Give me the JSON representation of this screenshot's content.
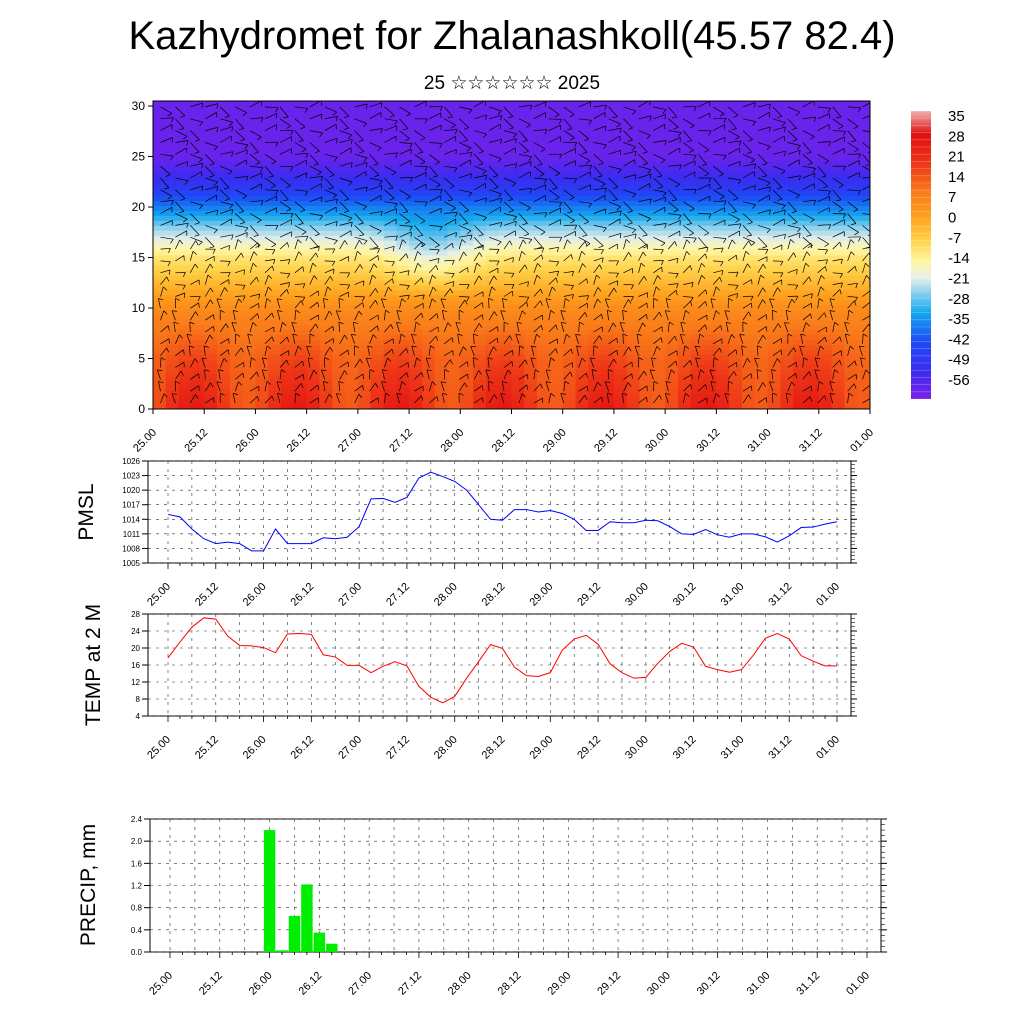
{
  "title": "Kazhydromet for Zhalanashkoll(45.57 82.4)",
  "subtitle": "25 ☆☆☆☆☆☆ 2025",
  "time_labels": [
    "25.00",
    "25.12",
    "26.00",
    "26.12",
    "27.00",
    "27.12",
    "28.00",
    "28.12",
    "29.00",
    "29.12",
    "30.00",
    "30.12",
    "31.00",
    "31.12",
    "01.00"
  ],
  "chart_data": [
    {
      "type": "heatmap",
      "name": "vertical-cross-section",
      "x_ticks": [
        "25.00",
        "25.12",
        "26.00",
        "26.12",
        "27.00",
        "27.12",
        "28.00",
        "28.12",
        "29.00",
        "29.12",
        "30.00",
        "30.12",
        "31.00",
        "31.12",
        "01.00"
      ],
      "y_ticks": [
        0,
        5,
        10,
        15,
        20,
        25,
        30
      ],
      "ylim": [
        0,
        30.5
      ],
      "colorbar_labels": [
        "35",
        "28",
        "21",
        "14",
        "7",
        "0",
        "-7",
        "-14",
        "-21",
        "-28",
        "-35",
        "-42",
        "-49",
        "-56"
      ],
      "color_range": [
        -63,
        42
      ],
      "temperature_profile": [
        {
          "y": 0,
          "value": 26
        },
        {
          "y": 5,
          "value": 20
        },
        {
          "y": 10,
          "value": 10
        },
        {
          "y": 15,
          "value": -8
        },
        {
          "y": 18,
          "value": -24
        },
        {
          "y": 20,
          "value": -36
        },
        {
          "y": 22,
          "value": -48
        },
        {
          "y": 25,
          "value": -60
        },
        {
          "y": 30,
          "value": -60
        }
      ],
      "wind_barbs": true
    },
    {
      "type": "line",
      "name": "pmsl",
      "ylabel": "PMSL",
      "ylim": [
        1005,
        1026
      ],
      "y_ticks": [
        1005,
        1008,
        1011,
        1014,
        1017,
        1020,
        1023,
        1026
      ],
      "color": "#0000ff",
      "x_ticks": [
        "25.00",
        "25.12",
        "26.00",
        "26.12",
        "27.00",
        "27.12",
        "28.00",
        "28.12",
        "29.00",
        "29.12",
        "30.00",
        "30.12",
        "31.00",
        "31.12",
        "01.00"
      ],
      "x_step_hours": 3,
      "values": [
        1015,
        1014.5,
        1012,
        1010,
        1009,
        1009.3,
        1009,
        1007.5,
        1007.5,
        1012,
        1009,
        1009,
        1009,
        1010.2,
        1010,
        1010.3,
        1012.5,
        1018.2,
        1018.3,
        1017.5,
        1018.5,
        1022.5,
        1023.7,
        1022.8,
        1021.8,
        1020,
        1017,
        1014,
        1013.8,
        1016,
        1016,
        1015.5,
        1015.8,
        1015.2,
        1014,
        1011.7,
        1011.7,
        1013.5,
        1013.3,
        1013.3,
        1013.8,
        1013.7,
        1012.5,
        1011,
        1010.9,
        1011.9,
        1010.8,
        1010.3,
        1011,
        1011,
        1010.4,
        1009.3,
        1010.6,
        1012.3,
        1012.4,
        1013,
        1013.5
      ]
    },
    {
      "type": "line",
      "name": "temp-2m",
      "ylabel": "TEMP at 2 M",
      "ylim": [
        4,
        28
      ],
      "y_ticks": [
        4,
        8,
        12,
        16,
        20,
        24,
        28
      ],
      "color": "#ff0000",
      "x_ticks": [
        "25.00",
        "25.12",
        "26.00",
        "26.12",
        "27.00",
        "27.12",
        "28.00",
        "28.12",
        "29.00",
        "29.12",
        "30.00",
        "30.12",
        "31.00",
        "31.12",
        "01.00"
      ],
      "x_step_hours": 3,
      "values": [
        17.7,
        21.4,
        24.9,
        27.1,
        26.8,
        22.8,
        20.6,
        20.5,
        20.1,
        18.9,
        23.3,
        23.4,
        23.2,
        18.4,
        17.9,
        15.9,
        15.9,
        14.2,
        15.7,
        16.8,
        15.8,
        11,
        8.4,
        7.1,
        8.6,
        12.9,
        16.8,
        20.8,
        19.9,
        15.5,
        13.5,
        13.3,
        14.2,
        19.5,
        22.1,
        23,
        20.9,
        16.3,
        14.2,
        12.9,
        13.1,
        16.4,
        19.2,
        21.1,
        20.2,
        15.7,
        14.9,
        14.3,
        14.9,
        18.3,
        22.3,
        23.4,
        22.1,
        18.2,
        16.9,
        15.8,
        15.8
      ]
    },
    {
      "type": "bar",
      "name": "precip",
      "ylabel": "PRECIP, mm",
      "ylim": [
        0,
        2.4
      ],
      "y_ticks": [
        "0.0",
        "0.4",
        "0.8",
        "1.2",
        "1.6",
        "2.0",
        "2.4"
      ],
      "color": "#00ee00",
      "x_ticks": [
        "25.00",
        "25.12",
        "26.00",
        "26.12",
        "27.00",
        "27.12",
        "28.00",
        "28.12",
        "29.00",
        "29.12",
        "30.00",
        "30.12",
        "31.00",
        "31.12",
        "01.00"
      ],
      "bars": [
        {
          "x_hours": 24,
          "value": 2.2
        },
        {
          "x_hours": 27,
          "value": 0.03
        },
        {
          "x_hours": 30,
          "value": 0.65
        },
        {
          "x_hours": 33,
          "value": 1.22
        },
        {
          "x_hours": 36,
          "value": 0.35
        },
        {
          "x_hours": 39,
          "value": 0.15
        }
      ]
    }
  ]
}
